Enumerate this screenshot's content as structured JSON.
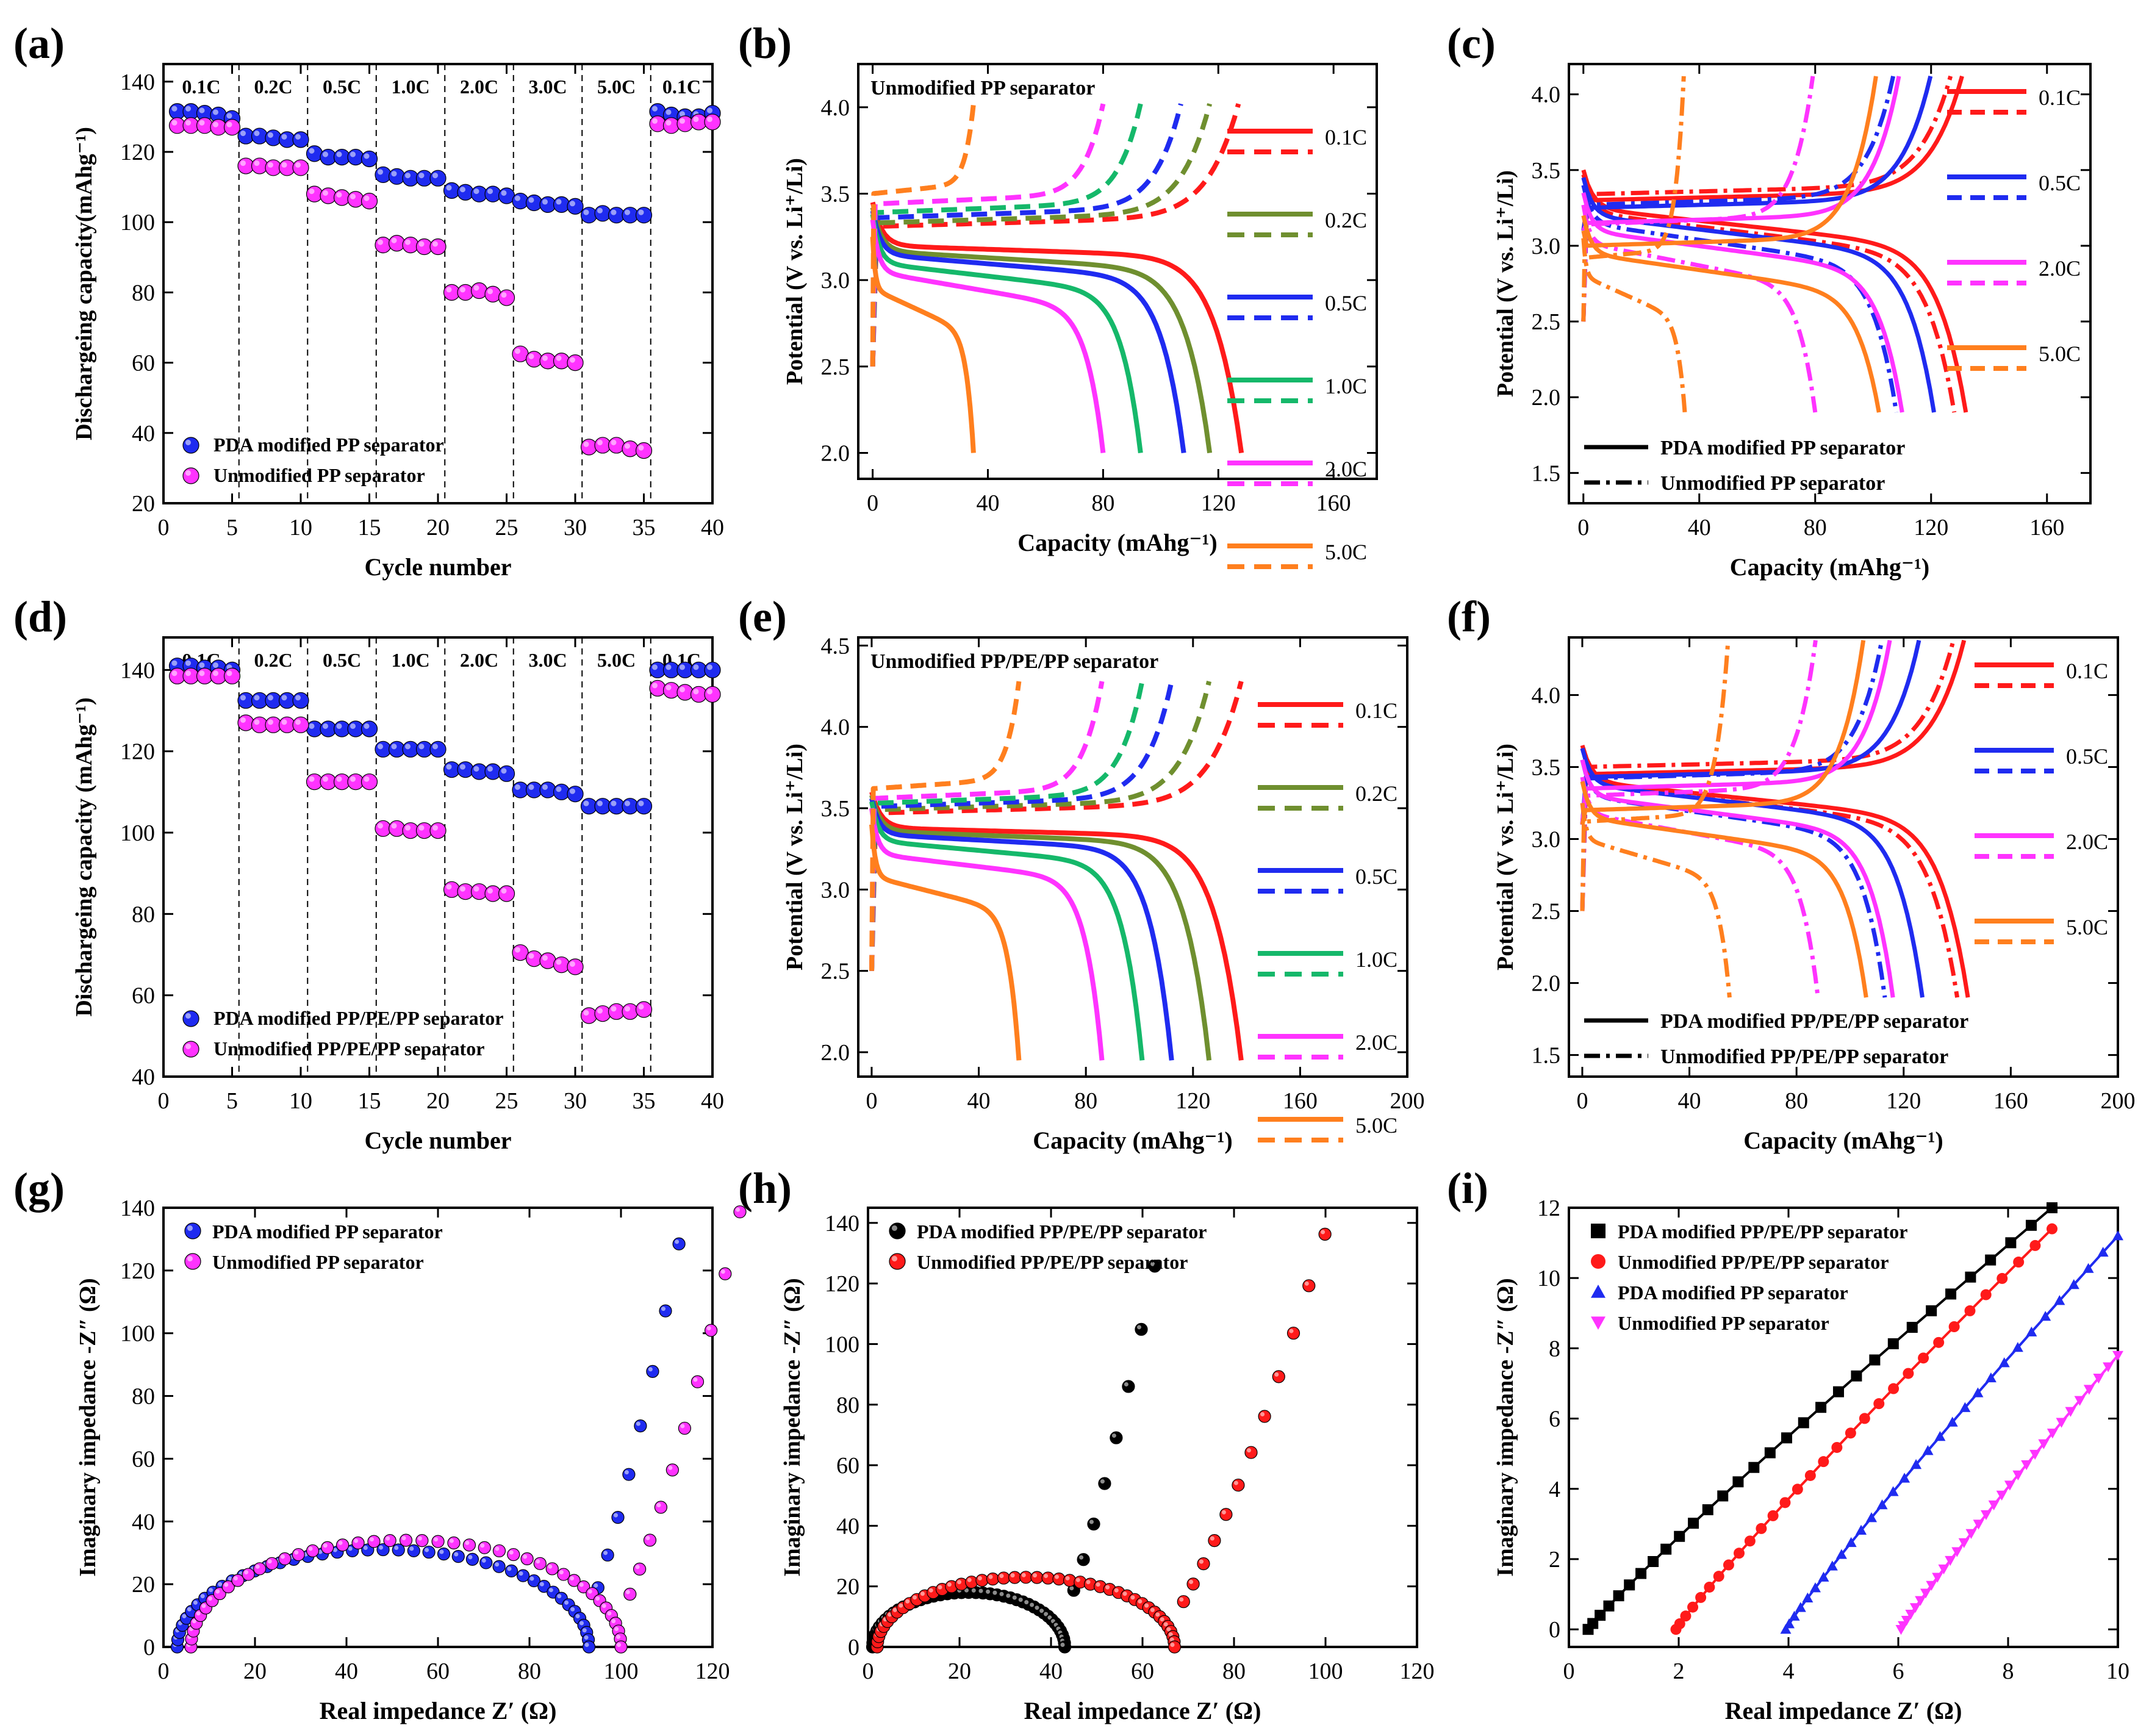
{
  "figure": {
    "panel_letters": [
      "(a)",
      "(b)",
      "(c)",
      "(d)",
      "(e)",
      "(f)",
      "(g)",
      "(h)",
      "(i)"
    ]
  },
  "colors": {
    "blue": "#1f2bf0",
    "magenta": "#ff33ff",
    "red": "#ff1a1a",
    "olive": "#6f8f2f",
    "green": "#15b86a",
    "orange": "#ff7f1e",
    "black": "#000000"
  },
  "chart_data": [
    {
      "id": "a",
      "type": "scatter",
      "xlabel": "Cycle number",
      "ylabel": "Dischargeing capacity(mAhg⁻¹)",
      "xlim": [
        0,
        40
      ],
      "ylim": [
        20,
        145
      ],
      "xticks": [
        0,
        5,
        10,
        15,
        20,
        25,
        30,
        35,
        40
      ],
      "yticks": [
        20,
        40,
        60,
        80,
        100,
        120,
        140
      ],
      "rate_dividers": [
        5.5,
        10.5,
        15.5,
        20.5,
        25.5,
        30.5,
        35.5
      ],
      "rate_labels": [
        "0.1C",
        "0.2C",
        "0.5C",
        "1.0C",
        "2.0C",
        "3.0C",
        "5.0C",
        "0.1C"
      ],
      "legend": [
        "PDA modified PP separator",
        "Unmodified PP separator"
      ],
      "series": [
        {
          "name": "PDA modified PP separator",
          "color": "blue",
          "values": [
            131.5,
            131.5,
            131,
            130.5,
            129.5,
            124.5,
            124.5,
            124,
            123.5,
            123.5,
            119.5,
            118.5,
            118.5,
            118.5,
            118,
            113.5,
            113,
            112.5,
            112.5,
            112.5,
            109,
            108.5,
            108,
            108,
            107.5,
            106,
            105.5,
            105,
            105,
            104.5,
            102,
            102.5,
            102,
            102,
            102,
            131.5,
            130.5,
            130,
            130,
            131
          ]
        },
        {
          "name": "Unmodified PP separator",
          "color": "magenta",
          "values": [
            127.5,
            127.5,
            127.5,
            127,
            127,
            116,
            116,
            115.5,
            115.5,
            115.5,
            108,
            107.5,
            107,
            106.5,
            106,
            93.5,
            94,
            93.5,
            93,
            93,
            80,
            80,
            80.5,
            79.5,
            78.5,
            62.5,
            61,
            60.5,
            60.5,
            60,
            36,
            36.5,
            36.5,
            35.5,
            35,
            128,
            127.5,
            128,
            128.5,
            128.5
          ]
        }
      ]
    },
    {
      "id": "b",
      "type": "line",
      "xlabel": "Capacity (mAhg⁻¹)",
      "ylabel": "Potential (V vs. Li⁺/Li)",
      "xlim": [
        -5,
        175
      ],
      "ylim": [
        1.85,
        4.25
      ],
      "xticks": [
        0,
        40,
        80,
        120,
        160
      ],
      "yticks": [
        2.0,
        2.5,
        3.0,
        3.5,
        4.0
      ],
      "title": "Unmodified PP separator",
      "legend": [
        "0.1C",
        "0.2C",
        "0.5C",
        "1.0C",
        "2.0C",
        "5.0C"
      ],
      "series": [
        {
          "name": "0.1C",
          "color": "red",
          "discharge_capacity": 128,
          "plateau_start": 3.2,
          "plateau_end": 3.13,
          "start": 3.45,
          "charge_capacity": 127,
          "charge_plateau": 3.31
        },
        {
          "name": "0.2C",
          "color": "olive",
          "discharge_capacity": 117,
          "plateau_start": 3.17,
          "plateau_end": 3.05,
          "start": 3.42,
          "charge_capacity": 117,
          "charge_plateau": 3.33
        },
        {
          "name": "0.5C",
          "color": "blue",
          "discharge_capacity": 108,
          "plateau_start": 3.15,
          "plateau_end": 3.0,
          "start": 3.4,
          "charge_capacity": 107,
          "charge_plateau": 3.36
        },
        {
          "name": "1.0C",
          "color": "green",
          "discharge_capacity": 93,
          "plateau_start": 3.1,
          "plateau_end": 2.92,
          "start": 3.38,
          "charge_capacity": 93,
          "charge_plateau": 3.39
        },
        {
          "name": "2.0C",
          "color": "magenta",
          "discharge_capacity": 80,
          "plateau_start": 3.05,
          "plateau_end": 2.82,
          "start": 3.35,
          "charge_capacity": 80,
          "charge_plateau": 3.44
        },
        {
          "name": "5.0C",
          "color": "orange",
          "discharge_capacity": 35,
          "plateau_start": 2.95,
          "plateau_end": 2.68,
          "start": 3.25,
          "charge_capacity": 35,
          "charge_plateau": 3.5
        }
      ]
    },
    {
      "id": "c",
      "type": "line",
      "xlabel": "Capacity (mAhg⁻¹)",
      "ylabel": "Potential (V vs. Li⁺/Li)",
      "xlim": [
        -5,
        175
      ],
      "ylim": [
        1.3,
        4.2
      ],
      "xticks": [
        0,
        40,
        80,
        120,
        160
      ],
      "yticks": [
        1.5,
        2.0,
        2.5,
        3.0,
        3.5,
        4.0
      ],
      "legend": [
        "0.1C",
        "0.5C",
        "2.0C",
        "5.0C"
      ],
      "style_legend": [
        "PDA modified PP separator",
        "Unmodified PP separator"
      ],
      "series": [
        {
          "name": "0.1C",
          "color": "red",
          "pda_capacity": 132,
          "un_capacity": 128,
          "pda_plateau": 3.25,
          "un_plateau": 3.22
        },
        {
          "name": "0.5C",
          "color": "blue",
          "pda_capacity": 121,
          "un_capacity": 108,
          "pda_plateau": 3.2,
          "un_plateau": 3.15
        },
        {
          "name": "2.0C",
          "color": "magenta",
          "pda_capacity": 110,
          "un_capacity": 80,
          "pda_plateau": 3.1,
          "un_plateau": 3.02
        },
        {
          "name": "5.0C",
          "color": "orange",
          "pda_capacity": 102,
          "un_capacity": 35,
          "pda_plateau": 2.95,
          "un_plateau": 2.8
        }
      ]
    },
    {
      "id": "d",
      "type": "scatter",
      "xlabel": "Cycle number",
      "ylabel": "Dischargeing capacity (mAhg⁻¹)",
      "xlim": [
        0,
        40
      ],
      "ylim": [
        40,
        148
      ],
      "xticks": [
        0,
        5,
        10,
        15,
        20,
        25,
        30,
        35,
        40
      ],
      "yticks": [
        40,
        60,
        80,
        100,
        120,
        140
      ],
      "rate_dividers": [
        5.5,
        10.5,
        15.5,
        20.5,
        25.5,
        30.5,
        35.5
      ],
      "rate_labels": [
        "0.1C",
        "0.2C",
        "0.5C",
        "1.0C",
        "2.0C",
        "3.0C",
        "5.0C",
        "0.1C"
      ],
      "legend": [
        "PDA modified PP/PE/PP separator",
        "Unmodified PP/PE/PP separator"
      ],
      "series": [
        {
          "name": "PDA modified PP/PE/PP separator",
          "color": "blue",
          "values": [
            141,
            141,
            140.5,
            140.5,
            140,
            132.5,
            132.5,
            132.5,
            132.5,
            132.5,
            125.5,
            125.5,
            125.5,
            125.5,
            125.5,
            120.5,
            120.5,
            120.5,
            120.5,
            120.5,
            115.5,
            115.5,
            115,
            115,
            114.5,
            110.5,
            110.5,
            110.5,
            110,
            109.5,
            106.5,
            106.5,
            106.5,
            106.5,
            106.5,
            140,
            140,
            140,
            140,
            140
          ]
        },
        {
          "name": "Unmodified PP/PE/PP separator",
          "color": "magenta",
          "values": [
            138.5,
            138.5,
            138.5,
            138.5,
            138.5,
            127,
            126.5,
            126.5,
            126.5,
            126.5,
            112.5,
            112.5,
            112.5,
            112.5,
            112.5,
            101,
            101,
            100.5,
            100.5,
            100.5,
            86,
            85.5,
            85.5,
            85,
            85,
            70.5,
            69,
            68.5,
            67.5,
            67,
            55,
            55.5,
            56,
            56,
            56.5,
            135.5,
            135,
            134.5,
            134,
            134
          ]
        }
      ]
    },
    {
      "id": "e",
      "type": "line",
      "xlabel": "Capacity (mAhg⁻¹)",
      "ylabel": "Potential (V vs. Li⁺/Li)",
      "xlim": [
        -5,
        200
      ],
      "ylim": [
        1.85,
        4.55
      ],
      "xticks": [
        0,
        40,
        80,
        120,
        160,
        200
      ],
      "yticks": [
        2.0,
        2.5,
        3.0,
        3.5,
        4.0,
        4.5
      ],
      "title": "Unmodified PP/PE/PP separator",
      "legend": [
        "0.1C",
        "0.2C",
        "0.5C",
        "1.0C",
        "2.0C",
        "5.0C"
      ],
      "series": [
        {
          "name": "0.1C",
          "color": "red",
          "discharge_capacity": 138,
          "plateau_start": 3.38,
          "plateau_end": 3.32,
          "start": 3.6,
          "charge_capacity": 138,
          "charge_plateau": 3.47
        },
        {
          "name": "0.2C",
          "color": "olive",
          "discharge_capacity": 126,
          "plateau_start": 3.36,
          "plateau_end": 3.28,
          "start": 3.58,
          "charge_capacity": 126,
          "charge_plateau": 3.49
        },
        {
          "name": "0.5C",
          "color": "blue",
          "discharge_capacity": 112,
          "plateau_start": 3.34,
          "plateau_end": 3.24,
          "start": 3.56,
          "charge_capacity": 112,
          "charge_plateau": 3.51
        },
        {
          "name": "1.0C",
          "color": "green",
          "discharge_capacity": 101,
          "plateau_start": 3.3,
          "plateau_end": 3.15,
          "start": 3.54,
          "charge_capacity": 101,
          "charge_plateau": 3.53
        },
        {
          "name": "2.0C",
          "color": "magenta",
          "discharge_capacity": 86,
          "plateau_start": 3.22,
          "plateau_end": 3.05,
          "start": 3.5,
          "charge_capacity": 86,
          "charge_plateau": 3.56
        },
        {
          "name": "5.0C",
          "color": "orange",
          "discharge_capacity": 55,
          "plateau_start": 3.08,
          "plateau_end": 2.85,
          "start": 3.4,
          "charge_capacity": 55,
          "charge_plateau": 3.62
        }
      ]
    },
    {
      "id": "f",
      "type": "line",
      "xlabel": "Capacity (mAhg⁻¹)",
      "ylabel": "Potential (V vs. Li⁺/Li)",
      "xlim": [
        -5,
        200
      ],
      "ylim": [
        1.35,
        4.4
      ],
      "xticks": [
        0,
        40,
        80,
        120,
        160,
        200
      ],
      "yticks": [
        1.5,
        2.0,
        2.5,
        3.0,
        3.5,
        4.0
      ],
      "legend": [
        "0.1C",
        "0.5C",
        "2.0C",
        "5.0C"
      ],
      "style_legend": [
        "PDA modified PP/PE/PP separator",
        "Unmodified PP/PE/PP separator"
      ],
      "series": [
        {
          "name": "0.1C",
          "color": "red",
          "pda_capacity": 144,
          "un_capacity": 140,
          "pda_plateau": 3.4,
          "un_plateau": 3.38
        },
        {
          "name": "0.5C",
          "color": "blue",
          "pda_capacity": 127,
          "un_capacity": 113,
          "pda_plateau": 3.38,
          "un_plateau": 3.3
        },
        {
          "name": "2.0C",
          "color": "magenta",
          "pda_capacity": 116,
          "un_capacity": 88,
          "pda_plateau": 3.3,
          "un_plateau": 3.18
        },
        {
          "name": "5.0C",
          "color": "orange",
          "pda_capacity": 106,
          "un_capacity": 55,
          "pda_plateau": 3.15,
          "un_plateau": 3.0
        }
      ]
    },
    {
      "id": "g",
      "type": "scatter",
      "xlabel": "Real impedance Z′ (Ω)",
      "ylabel": "Imaginary impedance -Z″ (Ω)",
      "xlim": [
        0,
        120
      ],
      "ylim": [
        0,
        140
      ],
      "xticks": [
        0,
        20,
        40,
        60,
        80,
        100,
        120
      ],
      "yticks": [
        0,
        20,
        40,
        60,
        80,
        100,
        120,
        140
      ],
      "legend": [
        "PDA modified PP separator",
        "Unmodified PP separator"
      ],
      "series": [
        {
          "name": "PDA modified PP separator",
          "color": "blue",
          "r0": 3,
          "rct": 90,
          "peak": 31,
          "tail_slope": 4.3
        },
        {
          "name": "Unmodified PP separator",
          "color": "magenta",
          "r0": 6,
          "rct": 94,
          "peak": 34,
          "tail_slope": 3.3
        }
      ]
    },
    {
      "id": "h",
      "type": "scatter",
      "xlabel": "Real impedance Z′ (Ω)",
      "ylabel": "Imaginary impedance -Z″ (Ω)",
      "xlim": [
        0,
        120
      ],
      "ylim": [
        0,
        145
      ],
      "xticks": [
        0,
        20,
        40,
        60,
        80,
        100,
        120
      ],
      "yticks": [
        0,
        20,
        40,
        60,
        80,
        100,
        120,
        140
      ],
      "legend": [
        "PDA modified PP/PE/PP separator",
        "Unmodified PP/PE/PP separator"
      ],
      "series": [
        {
          "name": "PDA modified PP/PE/PP separator",
          "color": "black",
          "r0": 1,
          "rct": 42,
          "peak": 18,
          "tail_slope": 4.2
        },
        {
          "name": "Unmodified PP/PE/PP separator",
          "color": "red",
          "r0": 2,
          "rct": 65,
          "peak": 23,
          "tail_slope": 2.4
        }
      ]
    },
    {
      "id": "i",
      "type": "line",
      "xlabel": "Real impedance Z′ (Ω)",
      "ylabel": "Imaginary impedance -Z″ (Ω)",
      "xlim": [
        0,
        10
      ],
      "ylim": [
        -0.5,
        12
      ],
      "xticks": [
        0,
        2,
        4,
        6,
        8,
        10
      ],
      "yticks": [
        0,
        2,
        4,
        6,
        8,
        10,
        12
      ],
      "legend": [
        "PDA modified PP/PE/PP separator",
        "Unmodified PP/PE/PP separator",
        "PDA modified PP separator",
        "Unmodified PP separator"
      ],
      "series": [
        {
          "name": "PDA modified PP/PE/PP separator",
          "color": "black",
          "marker": "square",
          "x0": 0.35,
          "x_end": 8.8,
          "y_end": 12
        },
        {
          "name": "Unmodified PP/PE/PP separator",
          "color": "red",
          "marker": "circle",
          "x0": 1.95,
          "x_end": 8.8,
          "y_end": 11.4
        },
        {
          "name": "PDA modified PP separator",
          "color": "blue",
          "marker": "triangle-up",
          "x0": 3.95,
          "x_end": 10,
          "y_end": 11.2
        },
        {
          "name": "Unmodified PP separator",
          "color": "magenta",
          "marker": "triangle-down",
          "x0": 6.05,
          "x_end": 10,
          "y_end": 7.8
        }
      ]
    }
  ]
}
